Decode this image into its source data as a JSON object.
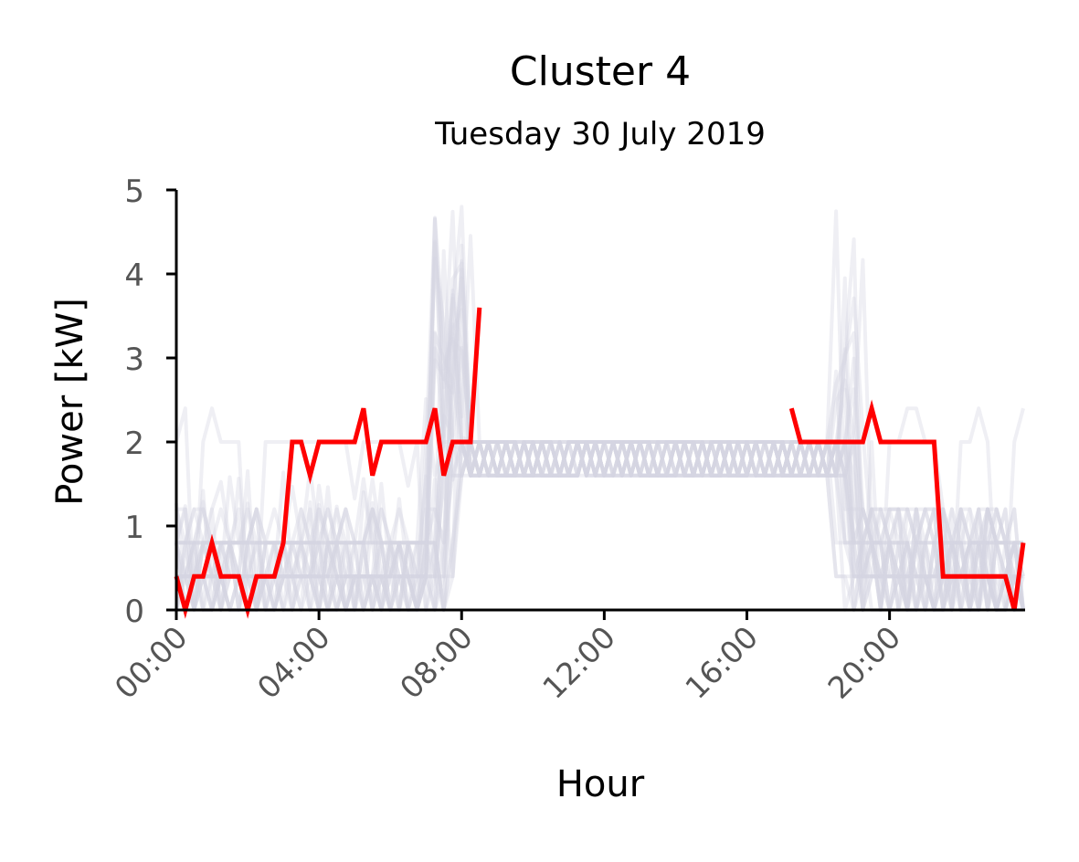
{
  "chart_data": {
    "type": "line",
    "title": "Cluster 4",
    "subtitle": "Tuesday 30 July 2019",
    "xlabel": "Hour",
    "ylabel": "Power [kW]",
    "xlim": [
      0,
      23.75
    ],
    "ylim": [
      0,
      5
    ],
    "x_ticks": [
      0,
      4,
      8,
      12,
      16,
      20
    ],
    "x_tick_labels": [
      "00:00",
      "04:00",
      "08:00",
      "12:00",
      "16:00",
      "20:00"
    ],
    "y_ticks": [
      0,
      1,
      2,
      3,
      4,
      5
    ],
    "y_tick_labels": [
      "0",
      "1",
      "2",
      "3",
      "4",
      "5"
    ],
    "grid": false,
    "legend": "none",
    "colors": {
      "highlight": "#ff0000",
      "background_series": "#d6d6e2"
    },
    "highlight_series": {
      "segments": [
        {
          "x": [
            0,
            0.25,
            0.5,
            0.75,
            1.0,
            1.25,
            1.5,
            1.75,
            2.0,
            2.25,
            2.5,
            2.75,
            3.0,
            3.25,
            3.5,
            3.75,
            4.0,
            4.25,
            4.5,
            4.75,
            5.0,
            5.25,
            5.5,
            5.75,
            6.0,
            6.25,
            6.5,
            6.75,
            7.0,
            7.25,
            7.5,
            7.75,
            8.0,
            8.25,
            8.5
          ],
          "y": [
            0.4,
            0.0,
            0.4,
            0.4,
            0.8,
            0.4,
            0.4,
            0.4,
            0.0,
            0.4,
            0.4,
            0.4,
            0.8,
            2.0,
            2.0,
            1.6,
            2.0,
            2.0,
            2.0,
            2.0,
            2.0,
            2.4,
            1.6,
            2.0,
            2.0,
            2.0,
            2.0,
            2.0,
            2.0,
            2.4,
            1.6,
            2.0,
            2.0,
            2.0,
            3.6
          ]
        },
        {
          "x": [
            17.25,
            17.5,
            17.75,
            18.0,
            18.25,
            18.5,
            18.75,
            19.0,
            19.25,
            19.5,
            19.75,
            20.0,
            20.25,
            20.5,
            20.75,
            21.0,
            21.25,
            21.5,
            21.75,
            22.0,
            22.25,
            22.5,
            22.75,
            23.0,
            23.25,
            23.5,
            23.75
          ],
          "y": [
            2.4,
            2.0,
            2.0,
            2.0,
            2.0,
            2.0,
            2.0,
            2.0,
            2.0,
            2.4,
            2.0,
            2.0,
            2.0,
            2.0,
            2.0,
            2.0,
            2.0,
            0.4,
            0.4,
            0.4,
            0.4,
            0.4,
            0.4,
            0.4,
            0.4,
            0.0,
            0.8
          ]
        }
      ]
    }
  }
}
